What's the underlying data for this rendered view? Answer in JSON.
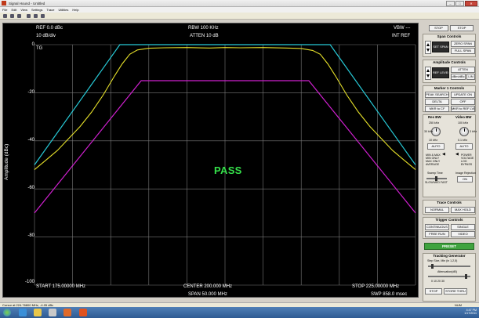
{
  "window": {
    "title": "Signal Hound - Untitled",
    "buttons": {
      "minimize": "–",
      "maximize": "□",
      "close": "✕"
    }
  },
  "menu": [
    "File",
    "Edit",
    "View",
    "Settings",
    "Trace",
    "Utilities",
    "Help"
  ],
  "plot": {
    "ref_level": "REF 0.0 dBc",
    "scale": "10 dB/div",
    "rbw": "RBW 100 KHz",
    "atten": "ATTEN 10 dB",
    "vbw": "VBW ---",
    "int_ref": "INT REF",
    "tg": "TG",
    "pass_label": "PASS",
    "start": "START 175.00000 MHz",
    "center": "CENTER 200.000 MHz",
    "span": "SPAN 50.000 MHz",
    "stop": "STOP 225.00000 MHz",
    "sweep": "SWP 858.0 msec",
    "ylabel": "Amplitude (dBc)",
    "yticks": [
      "0",
      "-20",
      "-40",
      "-60",
      "-80",
      "-100"
    ],
    "colors": {
      "trace": "#e6e02a",
      "upper_limit": "#27c9d6",
      "lower_limit": "#d020d0",
      "grid": "#7a7a7a"
    }
  },
  "chart_data": {
    "type": "line",
    "xlabel": "",
    "ylabel": "Amplitude (dBc)",
    "xlim": [
      175.0,
      225.0
    ],
    "ylim": [
      -100,
      0
    ],
    "series": [
      {
        "color": "#27c9d6",
        "x": [
          175.0,
          186.2,
          213.8,
          225.0
        ],
        "y": [
          -50,
          0,
          0,
          -50
        ]
      },
      {
        "color": "#d020d0",
        "x": [
          175.0,
          189.0,
          211.0,
          225.0
        ],
        "y": [
          -70,
          -15,
          -15,
          -70
        ]
      },
      {
        "color": "#e6e02a",
        "x": [
          175.0,
          176.5,
          178.0,
          179.5,
          181.0,
          182.5,
          184.0,
          185.5,
          186.5,
          187.5,
          188.5,
          190.0,
          192.0,
          195.0,
          198.0,
          200.0,
          202.0,
          205.0,
          208.0,
          210.0,
          211.5,
          212.5,
          213.5,
          214.5,
          216.0,
          217.5,
          219.0,
          220.5,
          222.0,
          223.5,
          225.0
        ],
        "y": [
          -52,
          -48,
          -44,
          -39,
          -34,
          -28,
          -21,
          -13,
          -8,
          -4,
          -2.2,
          -1.5,
          -1.3,
          -1.2,
          -1.4,
          -1.2,
          -1.3,
          -1.2,
          -1.4,
          -1.6,
          -2.4,
          -4,
          -8,
          -13,
          -21,
          -28,
          -34,
          -39,
          -44,
          -48,
          -52
        ]
      }
    ]
  },
  "panel": {
    "top": {
      "stop1": "STOP",
      "stop2": "STOP"
    },
    "span": {
      "title": "Span Controls",
      "set": "SET SPAN",
      "zero": "ZERO SPAN",
      "full": "FULL SPAN"
    },
    "amp": {
      "title": "Amplitude Controls",
      "set": "REF LEVEL",
      "atten": "ATTEN",
      "units": "dBm/dBc",
      "lin": "LIN"
    },
    "marker": {
      "title": "Marker 1 Controls",
      "peak": "PEAK SEARCH",
      "update": "UPDATE ON",
      "delta": "DELTA",
      "off": "OFF",
      "mkr_cf": "MKR to CF",
      "mkr_ref": "MKR to REF LVL"
    },
    "rbw": {
      "title": "Res BW",
      "top": "250 kHz",
      "mid": "30 kHz",
      "bot": "10 kHz",
      "auto": "AUTO"
    },
    "vbw": {
      "title": "Video BW",
      "top": "100 kHz",
      "mid": "3 kHz",
      "bot": "0.1 kHz",
      "auto": "AUTO"
    },
    "detect": {
      "min_max": "MIN & MAX",
      "min_only": "MIN ONLY",
      "max_only": "MAX ONLY",
      "average": "AVERAGE",
      "power": "POWER",
      "voltage": "VOLTAGE",
      "log": "LOG",
      "bypass": "BYPASS"
    },
    "sweep": {
      "title": "Sweep Time",
      "slow": "SLOW",
      "med": "MED",
      "fast": "FAST",
      "reject": "Image Rejection",
      "on": "ON"
    },
    "trace": {
      "title": "Trace Controls",
      "normal": "NORMAL",
      "maxhold": "MAX HOLD"
    },
    "trigger": {
      "title": "Trigger Controls",
      "continuous": "CONTINUOUS",
      "single": "SINGLE",
      "freerun": "FREE RUN",
      "video": "VIDEO"
    },
    "preset": "PRESET",
    "tg": {
      "title": "Tracking Generator",
      "step": "Step Size, Min (in 1,2,5)",
      "atten": "Attenuation(dB)",
      "scale": "0  10  20  30",
      "stop": "STOP",
      "store": "STORE THRU"
    }
  },
  "status": {
    "left": "Cursor at 224.76800 MHz, -4.05 dBc",
    "right": "NUM"
  },
  "tray": {
    "time": "4:47 PM",
    "date": "1/17/2011"
  }
}
